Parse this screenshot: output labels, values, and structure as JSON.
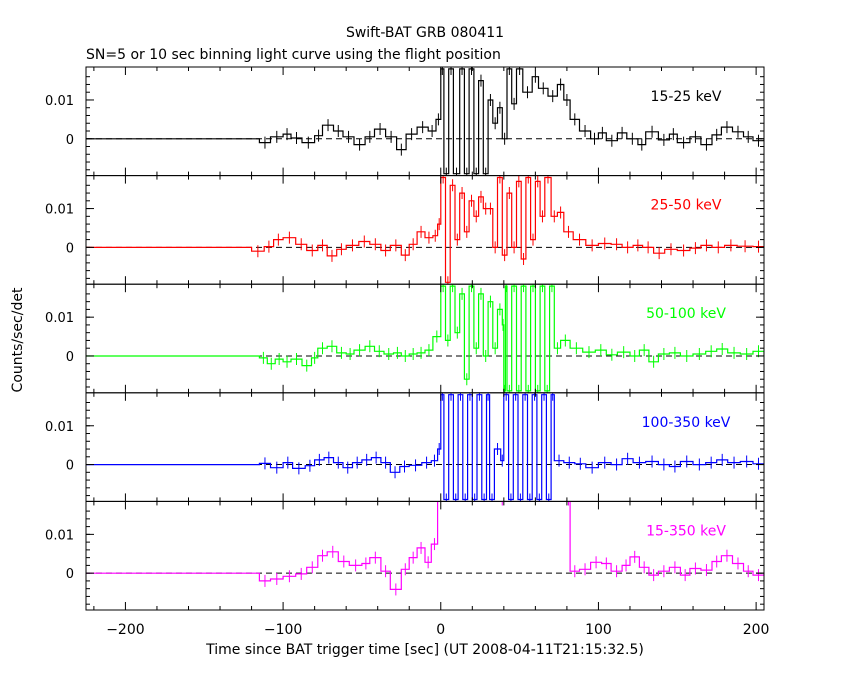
{
  "chart_data": {
    "type": "line",
    "title": "Swift-BAT GRB 080411",
    "subtitle": "SN=5 or 10 sec binning light curve using the flight position",
    "xlabel": "Time since BAT trigger time [sec] (UT 2008-04-11T21:15:32.5)",
    "ylabel": "Counts/sec/det",
    "xlim": [
      -225,
      205
    ],
    "ylim": [
      -0.0095,
      0.0185
    ],
    "x_ticks": [
      -200,
      -100,
      0,
      100,
      200
    ],
    "y_ticks": [
      0,
      0.01
    ],
    "y_tick_labels": [
      "0",
      "0.01"
    ],
    "zero_line": "dashed",
    "panels": [
      {
        "name": "15-25 keV",
        "color": "#000000",
        "points": [
          [
            -225,
            0
          ],
          [
            -165,
            0
          ],
          [
            -115,
            -0.001
          ],
          [
            -108,
            0.0005
          ],
          [
            -100,
            0.0012
          ],
          [
            -95,
            0.0002
          ],
          [
            -88,
            -0.001
          ],
          [
            -80,
            0.0008
          ],
          [
            -75,
            0.0035
          ],
          [
            -68,
            0.002
          ],
          [
            -62,
            0.0005
          ],
          [
            -55,
            -0.0015
          ],
          [
            -48,
            0.0005
          ],
          [
            -42,
            0.0025
          ],
          [
            -35,
            0.0005
          ],
          [
            -28,
            -0.0028
          ],
          [
            -22,
            0.0012
          ],
          [
            -15,
            0.003
          ],
          [
            -8,
            0.002
          ],
          [
            -3,
            0.005
          ],
          [
            0,
            0.018
          ],
          [
            2,
            -0.009
          ],
          [
            5,
            0.018
          ],
          [
            8,
            -0.009
          ],
          [
            12,
            0.018
          ],
          [
            15,
            -0.009
          ],
          [
            18,
            0.018
          ],
          [
            21,
            -0.009
          ],
          [
            24,
            0.015
          ],
          [
            27,
            -0.009
          ],
          [
            30,
            0.01
          ],
          [
            33,
            0.004
          ],
          [
            36,
            0.008
          ],
          [
            39,
            0.0
          ],
          [
            42,
            0.018
          ],
          [
            45,
            0.009
          ],
          [
            48,
            0.018
          ],
          [
            52,
            0.012
          ],
          [
            58,
            0.016
          ],
          [
            62,
            0.013
          ],
          [
            68,
            0.011
          ],
          [
            74,
            0.014
          ],
          [
            78,
            0.01
          ],
          [
            82,
            0.005
          ],
          [
            88,
            0.002
          ],
          [
            95,
            0.0
          ],
          [
            100,
            0.0015
          ],
          [
            105,
            -0.0005
          ],
          [
            112,
            0.0015
          ],
          [
            118,
            0.0
          ],
          [
            125,
            -0.0015
          ],
          [
            130,
            0.0018
          ],
          [
            138,
            -0.0003
          ],
          [
            145,
            0.0012
          ],
          [
            150,
            -0.001
          ],
          [
            158,
            0.0005
          ],
          [
            165,
            -0.0015
          ],
          [
            172,
            0.001
          ],
          [
            178,
            0.003
          ],
          [
            185,
            0.0018
          ],
          [
            192,
            0.0005
          ],
          [
            198,
            -0.0005
          ],
          [
            205,
            0.0
          ]
        ]
      },
      {
        "name": "25-50 keV",
        "color": "#ff0000",
        "points": [
          [
            -225,
            0
          ],
          [
            -165,
            0
          ],
          [
            -120,
            -0.001
          ],
          [
            -112,
            0.0002
          ],
          [
            -106,
            0.002
          ],
          [
            -100,
            0.0025
          ],
          [
            -92,
            0.0008
          ],
          [
            -85,
            -0.0008
          ],
          [
            -78,
            0.0005
          ],
          [
            -72,
            -0.0022
          ],
          [
            -66,
            -0.0005
          ],
          [
            -60,
            0.0005
          ],
          [
            -52,
            0.0015
          ],
          [
            -45,
            0.0008
          ],
          [
            -38,
            -0.0008
          ],
          [
            -32,
            0.0005
          ],
          [
            -25,
            -0.002
          ],
          [
            -20,
            0.0008
          ],
          [
            -15,
            0.004
          ],
          [
            -10,
            0.0025
          ],
          [
            -5,
            0.003
          ],
          [
            -2,
            0.006
          ],
          [
            0,
            0.018
          ],
          [
            3,
            -0.009
          ],
          [
            6,
            0.016
          ],
          [
            9,
            0.002
          ],
          [
            12,
            0.014
          ],
          [
            15,
            0.004
          ],
          [
            18,
            0.012
          ],
          [
            21,
            0.008
          ],
          [
            24,
            0.013
          ],
          [
            27,
            0.01
          ],
          [
            30,
            0.01
          ],
          [
            33,
            0.0
          ],
          [
            36,
            0.018
          ],
          [
            39,
            -0.002
          ],
          [
            42,
            0.014
          ],
          [
            45,
            0.0
          ],
          [
            48,
            0.017
          ],
          [
            51,
            -0.003
          ],
          [
            54,
            0.018
          ],
          [
            57,
            0.002
          ],
          [
            60,
            0.017
          ],
          [
            63,
            0.008
          ],
          [
            66,
            0.018
          ],
          [
            70,
            0.008
          ],
          [
            74,
            0.009
          ],
          [
            78,
            0.004
          ],
          [
            84,
            0.002
          ],
          [
            92,
            0.0005
          ],
          [
            100,
            0.001
          ],
          [
            108,
            0.0008
          ],
          [
            115,
            0.0
          ],
          [
            122,
            0.0005
          ],
          [
            128,
            0.0
          ],
          [
            135,
            -0.0015
          ],
          [
            142,
            -0.0005
          ],
          [
            150,
            -0.0008
          ],
          [
            158,
            -0.0002
          ],
          [
            165,
            0.0005
          ],
          [
            172,
            0.0
          ],
          [
            180,
            0.0005
          ],
          [
            188,
            0.0003
          ],
          [
            198,
            0.0002
          ],
          [
            205,
            0.0
          ]
        ]
      },
      {
        "name": "50-100 keV",
        "color": "#00ff00",
        "points": [
          [
            -225,
            0
          ],
          [
            -165,
            0
          ],
          [
            -115,
            -0.0005
          ],
          [
            -110,
            -0.002
          ],
          [
            -105,
            -0.0008
          ],
          [
            -100,
            -0.0015
          ],
          [
            -95,
            -0.0008
          ],
          [
            -88,
            -0.0025
          ],
          [
            -82,
            -0.0005
          ],
          [
            -78,
            0.002
          ],
          [
            -72,
            0.0025
          ],
          [
            -66,
            0.0008
          ],
          [
            -60,
            0.0005
          ],
          [
            -55,
            0.0015
          ],
          [
            -48,
            0.0025
          ],
          [
            -42,
            0.0012
          ],
          [
            -36,
            0.0005
          ],
          [
            -30,
            0.0008
          ],
          [
            -25,
            0.0
          ],
          [
            -20,
            0.0005
          ],
          [
            -15,
            0.0008
          ],
          [
            -10,
            0.0015
          ],
          [
            -5,
            0.005
          ],
          [
            0,
            0.018
          ],
          [
            3,
            0.004
          ],
          [
            6,
            0.018
          ],
          [
            9,
            0.006
          ],
          [
            12,
            0.016
          ],
          [
            15,
            -0.006
          ],
          [
            18,
            0.018
          ],
          [
            21,
            0.002
          ],
          [
            24,
            0.016
          ],
          [
            27,
            0.0
          ],
          [
            30,
            0.014
          ],
          [
            33,
            0.002
          ],
          [
            36,
            0.012
          ],
          [
            39,
            0.008
          ],
          [
            40,
            -0.009
          ],
          [
            41,
            0.018
          ],
          [
            42,
            -0.009
          ],
          [
            45,
            0.018
          ],
          [
            48,
            -0.009
          ],
          [
            51,
            0.018
          ],
          [
            54,
            -0.009
          ],
          [
            57,
            0.018
          ],
          [
            60,
            -0.009
          ],
          [
            63,
            0.018
          ],
          [
            66,
            -0.009
          ],
          [
            69,
            0.018
          ],
          [
            72,
            0.002
          ],
          [
            76,
            0.004
          ],
          [
            82,
            0.002
          ],
          [
            90,
            0.001
          ],
          [
            98,
            0.0015
          ],
          [
            105,
            0.0003
          ],
          [
            112,
            0.001
          ],
          [
            120,
            0.0
          ],
          [
            126,
            0.0015
          ],
          [
            132,
            -0.0015
          ],
          [
            138,
            0.0005
          ],
          [
            145,
            0.0008
          ],
          [
            152,
            0.0
          ],
          [
            160,
            0.0005
          ],
          [
            168,
            0.0012
          ],
          [
            175,
            0.0018
          ],
          [
            182,
            0.0008
          ],
          [
            190,
            0.0005
          ],
          [
            198,
            0.0012
          ],
          [
            205,
            0.0
          ]
        ]
      },
      {
        "name": "100-350 keV",
        "color": "#0000ff",
        "points": [
          [
            -225,
            0
          ],
          [
            -165,
            0
          ],
          [
            -115,
            0.0003
          ],
          [
            -108,
            -0.0008
          ],
          [
            -100,
            0.0005
          ],
          [
            -94,
            -0.001
          ],
          [
            -86,
            -0.0003
          ],
          [
            -80,
            0.0012
          ],
          [
            -74,
            0.0018
          ],
          [
            -68,
            0.0005
          ],
          [
            -62,
            -0.0008
          ],
          [
            -56,
            0.0005
          ],
          [
            -50,
            0.0012
          ],
          [
            -44,
            0.0018
          ],
          [
            -38,
            0.0005
          ],
          [
            -32,
            -0.002
          ],
          [
            -26,
            -0.0005
          ],
          [
            -20,
            -0.0002
          ],
          [
            -12,
            0.0005
          ],
          [
            -6,
            0.001
          ],
          [
            -2,
            0.004
          ],
          [
            0,
            0.018
          ],
          [
            2,
            -0.009
          ],
          [
            5,
            0.018
          ],
          [
            8,
            -0.009
          ],
          [
            11,
            0.018
          ],
          [
            14,
            -0.009
          ],
          [
            17,
            0.018
          ],
          [
            20,
            -0.009
          ],
          [
            23,
            0.018
          ],
          [
            26,
            -0.009
          ],
          [
            29,
            0.018
          ],
          [
            31,
            -0.009
          ],
          [
            34,
            0.004
          ],
          [
            38,
            0.001
          ],
          [
            40,
            0.018
          ],
          [
            43,
            -0.009
          ],
          [
            46,
            0.018
          ],
          [
            49,
            -0.009
          ],
          [
            52,
            0.018
          ],
          [
            55,
            -0.009
          ],
          [
            58,
            0.018
          ],
          [
            61,
            -0.009
          ],
          [
            64,
            0.018
          ],
          [
            67,
            -0.009
          ],
          [
            70,
            0.018
          ],
          [
            72,
            0.001
          ],
          [
            78,
            0.0005
          ],
          [
            85,
            0.0002
          ],
          [
            92,
            -0.0008
          ],
          [
            100,
            0.0005
          ],
          [
            108,
            0.0
          ],
          [
            115,
            0.0015
          ],
          [
            122,
            0.0005
          ],
          [
            130,
            0.0008
          ],
          [
            138,
            0.0
          ],
          [
            145,
            -0.0005
          ],
          [
            152,
            0.0008
          ],
          [
            160,
            0.0
          ],
          [
            168,
            0.0005
          ],
          [
            175,
            0.0012
          ],
          [
            182,
            0.0005
          ],
          [
            190,
            0.0008
          ],
          [
            198,
            0.0002
          ],
          [
            205,
            0.0
          ]
        ]
      },
      {
        "name": "15-350 keV",
        "color": "#ff00ff",
        "points": [
          [
            -225,
            0
          ],
          [
            -165,
            0
          ],
          [
            -115,
            -0.002
          ],
          [
            -108,
            -0.0015
          ],
          [
            -100,
            -0.0008
          ],
          [
            -92,
            -0.0002
          ],
          [
            -85,
            0.0015
          ],
          [
            -78,
            0.0045
          ],
          [
            -72,
            0.0055
          ],
          [
            -65,
            0.003
          ],
          [
            -58,
            0.002
          ],
          [
            -50,
            0.0025
          ],
          [
            -45,
            0.004
          ],
          [
            -38,
            0.0005
          ],
          [
            -32,
            -0.0042
          ],
          [
            -25,
            0.001
          ],
          [
            -20,
            0.004
          ],
          [
            -15,
            0.0065
          ],
          [
            -10,
            0.0028
          ],
          [
            -6,
            0.0075
          ],
          [
            -2,
            0.019
          ],
          [
            80,
            0.019
          ],
          [
            82,
            0.0005
          ],
          [
            88,
            0.001
          ],
          [
            95,
            0.0028
          ],
          [
            102,
            0.0025
          ],
          [
            108,
            0.0005
          ],
          [
            115,
            0.002
          ],
          [
            120,
            0.0042
          ],
          [
            126,
            0.0015
          ],
          [
            132,
            -0.0005
          ],
          [
            138,
            0.0005
          ],
          [
            145,
            0.0015
          ],
          [
            152,
            -0.0005
          ],
          [
            158,
            0.0012
          ],
          [
            165,
            0.0008
          ],
          [
            172,
            0.003
          ],
          [
            178,
            0.0045
          ],
          [
            185,
            0.0025
          ],
          [
            192,
            0.0005
          ],
          [
            198,
            -0.0005
          ],
          [
            205,
            0.0
          ]
        ]
      }
    ]
  }
}
